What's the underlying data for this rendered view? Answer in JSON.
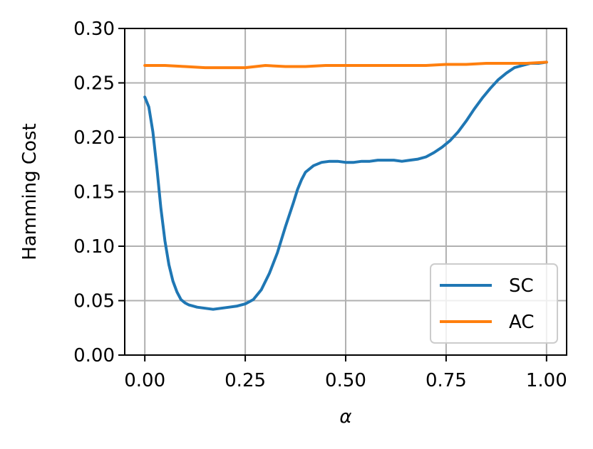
{
  "chart_data": {
    "type": "line",
    "title": "",
    "xlabel": "α",
    "ylabel": "Hamming Cost",
    "xlim": [
      -0.05,
      1.05
    ],
    "ylim": [
      0.0,
      0.3
    ],
    "x_ticks": [
      "0.00",
      "0.25",
      "0.50",
      "0.75",
      "1.00"
    ],
    "y_ticks": [
      "0.00",
      "0.05",
      "0.10",
      "0.15",
      "0.20",
      "0.25",
      "0.30"
    ],
    "grid": true,
    "legend_position": "lower-right",
    "series": [
      {
        "name": "SC",
        "color": "#1f77b4",
        "x": [
          0.0,
          0.01,
          0.02,
          0.03,
          0.04,
          0.05,
          0.06,
          0.07,
          0.08,
          0.09,
          0.1,
          0.11,
          0.12,
          0.13,
          0.15,
          0.17,
          0.19,
          0.21,
          0.23,
          0.25,
          0.27,
          0.29,
          0.31,
          0.33,
          0.35,
          0.37,
          0.38,
          0.39,
          0.4,
          0.42,
          0.44,
          0.46,
          0.48,
          0.5,
          0.52,
          0.54,
          0.56,
          0.58,
          0.6,
          0.62,
          0.64,
          0.66,
          0.68,
          0.7,
          0.72,
          0.74,
          0.76,
          0.78,
          0.8,
          0.82,
          0.84,
          0.86,
          0.88,
          0.9,
          0.92,
          0.94,
          0.96,
          0.98,
          1.0
        ],
        "y": [
          0.237,
          0.228,
          0.205,
          0.172,
          0.135,
          0.105,
          0.083,
          0.068,
          0.058,
          0.051,
          0.048,
          0.046,
          0.045,
          0.044,
          0.043,
          0.042,
          0.043,
          0.044,
          0.045,
          0.047,
          0.051,
          0.06,
          0.075,
          0.094,
          0.118,
          0.14,
          0.152,
          0.161,
          0.168,
          0.174,
          0.177,
          0.178,
          0.178,
          0.177,
          0.177,
          0.178,
          0.178,
          0.179,
          0.179,
          0.179,
          0.178,
          0.179,
          0.18,
          0.182,
          0.186,
          0.191,
          0.197,
          0.205,
          0.215,
          0.226,
          0.236,
          0.245,
          0.253,
          0.259,
          0.264,
          0.266,
          0.268,
          0.268,
          0.269
        ]
      },
      {
        "name": "AC",
        "color": "#ff7f0e",
        "x": [
          0.0,
          0.05,
          0.1,
          0.15,
          0.2,
          0.25,
          0.3,
          0.35,
          0.4,
          0.45,
          0.5,
          0.55,
          0.6,
          0.65,
          0.7,
          0.75,
          0.8,
          0.85,
          0.9,
          0.95,
          1.0
        ],
        "y": [
          0.266,
          0.266,
          0.265,
          0.264,
          0.264,
          0.264,
          0.266,
          0.265,
          0.265,
          0.266,
          0.266,
          0.266,
          0.266,
          0.266,
          0.266,
          0.267,
          0.267,
          0.268,
          0.268,
          0.268,
          0.269
        ]
      }
    ]
  }
}
